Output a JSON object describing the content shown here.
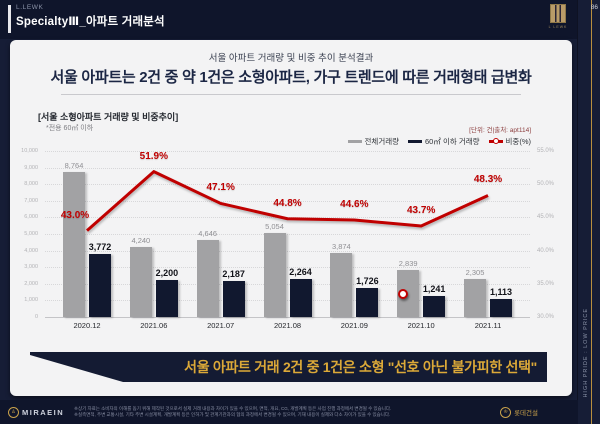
{
  "header": {
    "brand_small": "L.LEWK",
    "title": "SpecialtyⅢ_아파트 거래분석",
    "logo_text": "L LEWK",
    "page_number": "86"
  },
  "sidebar": {
    "vertical_text": "HIGH PRIDE : LOW PRICE"
  },
  "title_block": {
    "subtitle": "서울 아파트 거래량 및 비중 추이 분석결과",
    "title": "서울 아파트는 2건 중 약 1건은 소형아파트, 가구 트렌드에 따른 거래형태 급변화"
  },
  "chart_data": {
    "type": "bar",
    "title": "[서울 소형아파트 거래량 및 비중추이]",
    "note": "*전용 60㎡ 이하",
    "unit_label": "[단위: 건|출처: apt114]",
    "categories": [
      "2020.12",
      "2021.06",
      "2021.07",
      "2021.08",
      "2021.09",
      "2021.10",
      "2021.11"
    ],
    "series": [
      {
        "name": "전체거래량",
        "type": "bar",
        "color": "#a2a2a4",
        "values": [
          8764,
          4240,
          4646,
          5054,
          3874,
          2839,
          2305
        ]
      },
      {
        "name": "60㎡ 이하 거래량",
        "type": "bar",
        "color": "#11182f",
        "values": [
          3772,
          2200,
          2187,
          2264,
          1726,
          1241,
          1113
        ]
      },
      {
        "name": "비중(%)",
        "type": "line",
        "axis": "right",
        "color": "#c00000",
        "values": [
          43.0,
          51.9,
          47.1,
          44.8,
          44.6,
          43.7,
          48.3
        ]
      }
    ],
    "y_left": {
      "min": 0,
      "max": 10000,
      "step": 1000
    },
    "y_right": {
      "min": 30,
      "max": 55,
      "step": 5
    },
    "legend_position": "top-right",
    "grid": "dotted-horizontal",
    "annotation_marker": {
      "category_index": 5,
      "value_right": 33.5,
      "dx": -18
    }
  },
  "banner": {
    "text": "서울 아파트 거래 2건 중 1건은 소형 \"선호 아닌 불가피한 선택\""
  },
  "footer": {
    "logo_text": "MIRAEIN",
    "logo_glyph": "♙",
    "disclaimer_line1": "※상기 자료는 소비자의 이해를 돕기 위해 제작된 것으로서 실제 거래 내용과 차이가 있을 수 있으며, 면적, 개요, CG, 개발계획 등은 사업 진행 과정에서 변경될 수 있습니다.",
    "disclaimer_line2": "※실측면적, 주변 교통시설, 기타 주변 시설계획, 개발계획 등은 인허가 및 관계기관과의 협의 과정에서 변경될 수 있으며, 기재 내용이 실제와 다소 차이가 있을 수 있습니다.",
    "partner_glyph": "♔",
    "partner_text": "롯데건설"
  }
}
